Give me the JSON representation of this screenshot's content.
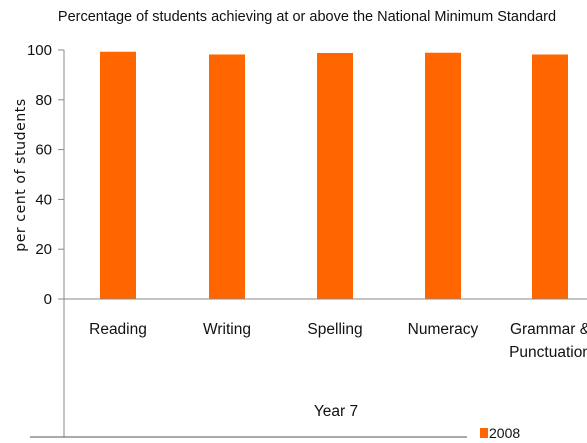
{
  "chart_data": {
    "type": "bar",
    "title": "Percentage of students achieving at or above the National Minimum Standard",
    "ylabel": "per cent of students",
    "xlabel": "Year 7",
    "ylim": [
      0,
      100
    ],
    "yticks": [
      0,
      20,
      40,
      60,
      80,
      100
    ],
    "categories": [
      [
        "Reading"
      ],
      [
        "Writing"
      ],
      [
        "Spelling"
      ],
      [
        "Numeracy"
      ],
      [
        "Grammar &",
        "Punctuation"
      ]
    ],
    "series": [
      {
        "name": "2008",
        "color": "#ff6600",
        "values": [
          99.3,
          98.2,
          98.8,
          98.9,
          98.2
        ]
      }
    ],
    "legend_position": "bottom-right",
    "grid": false
  }
}
